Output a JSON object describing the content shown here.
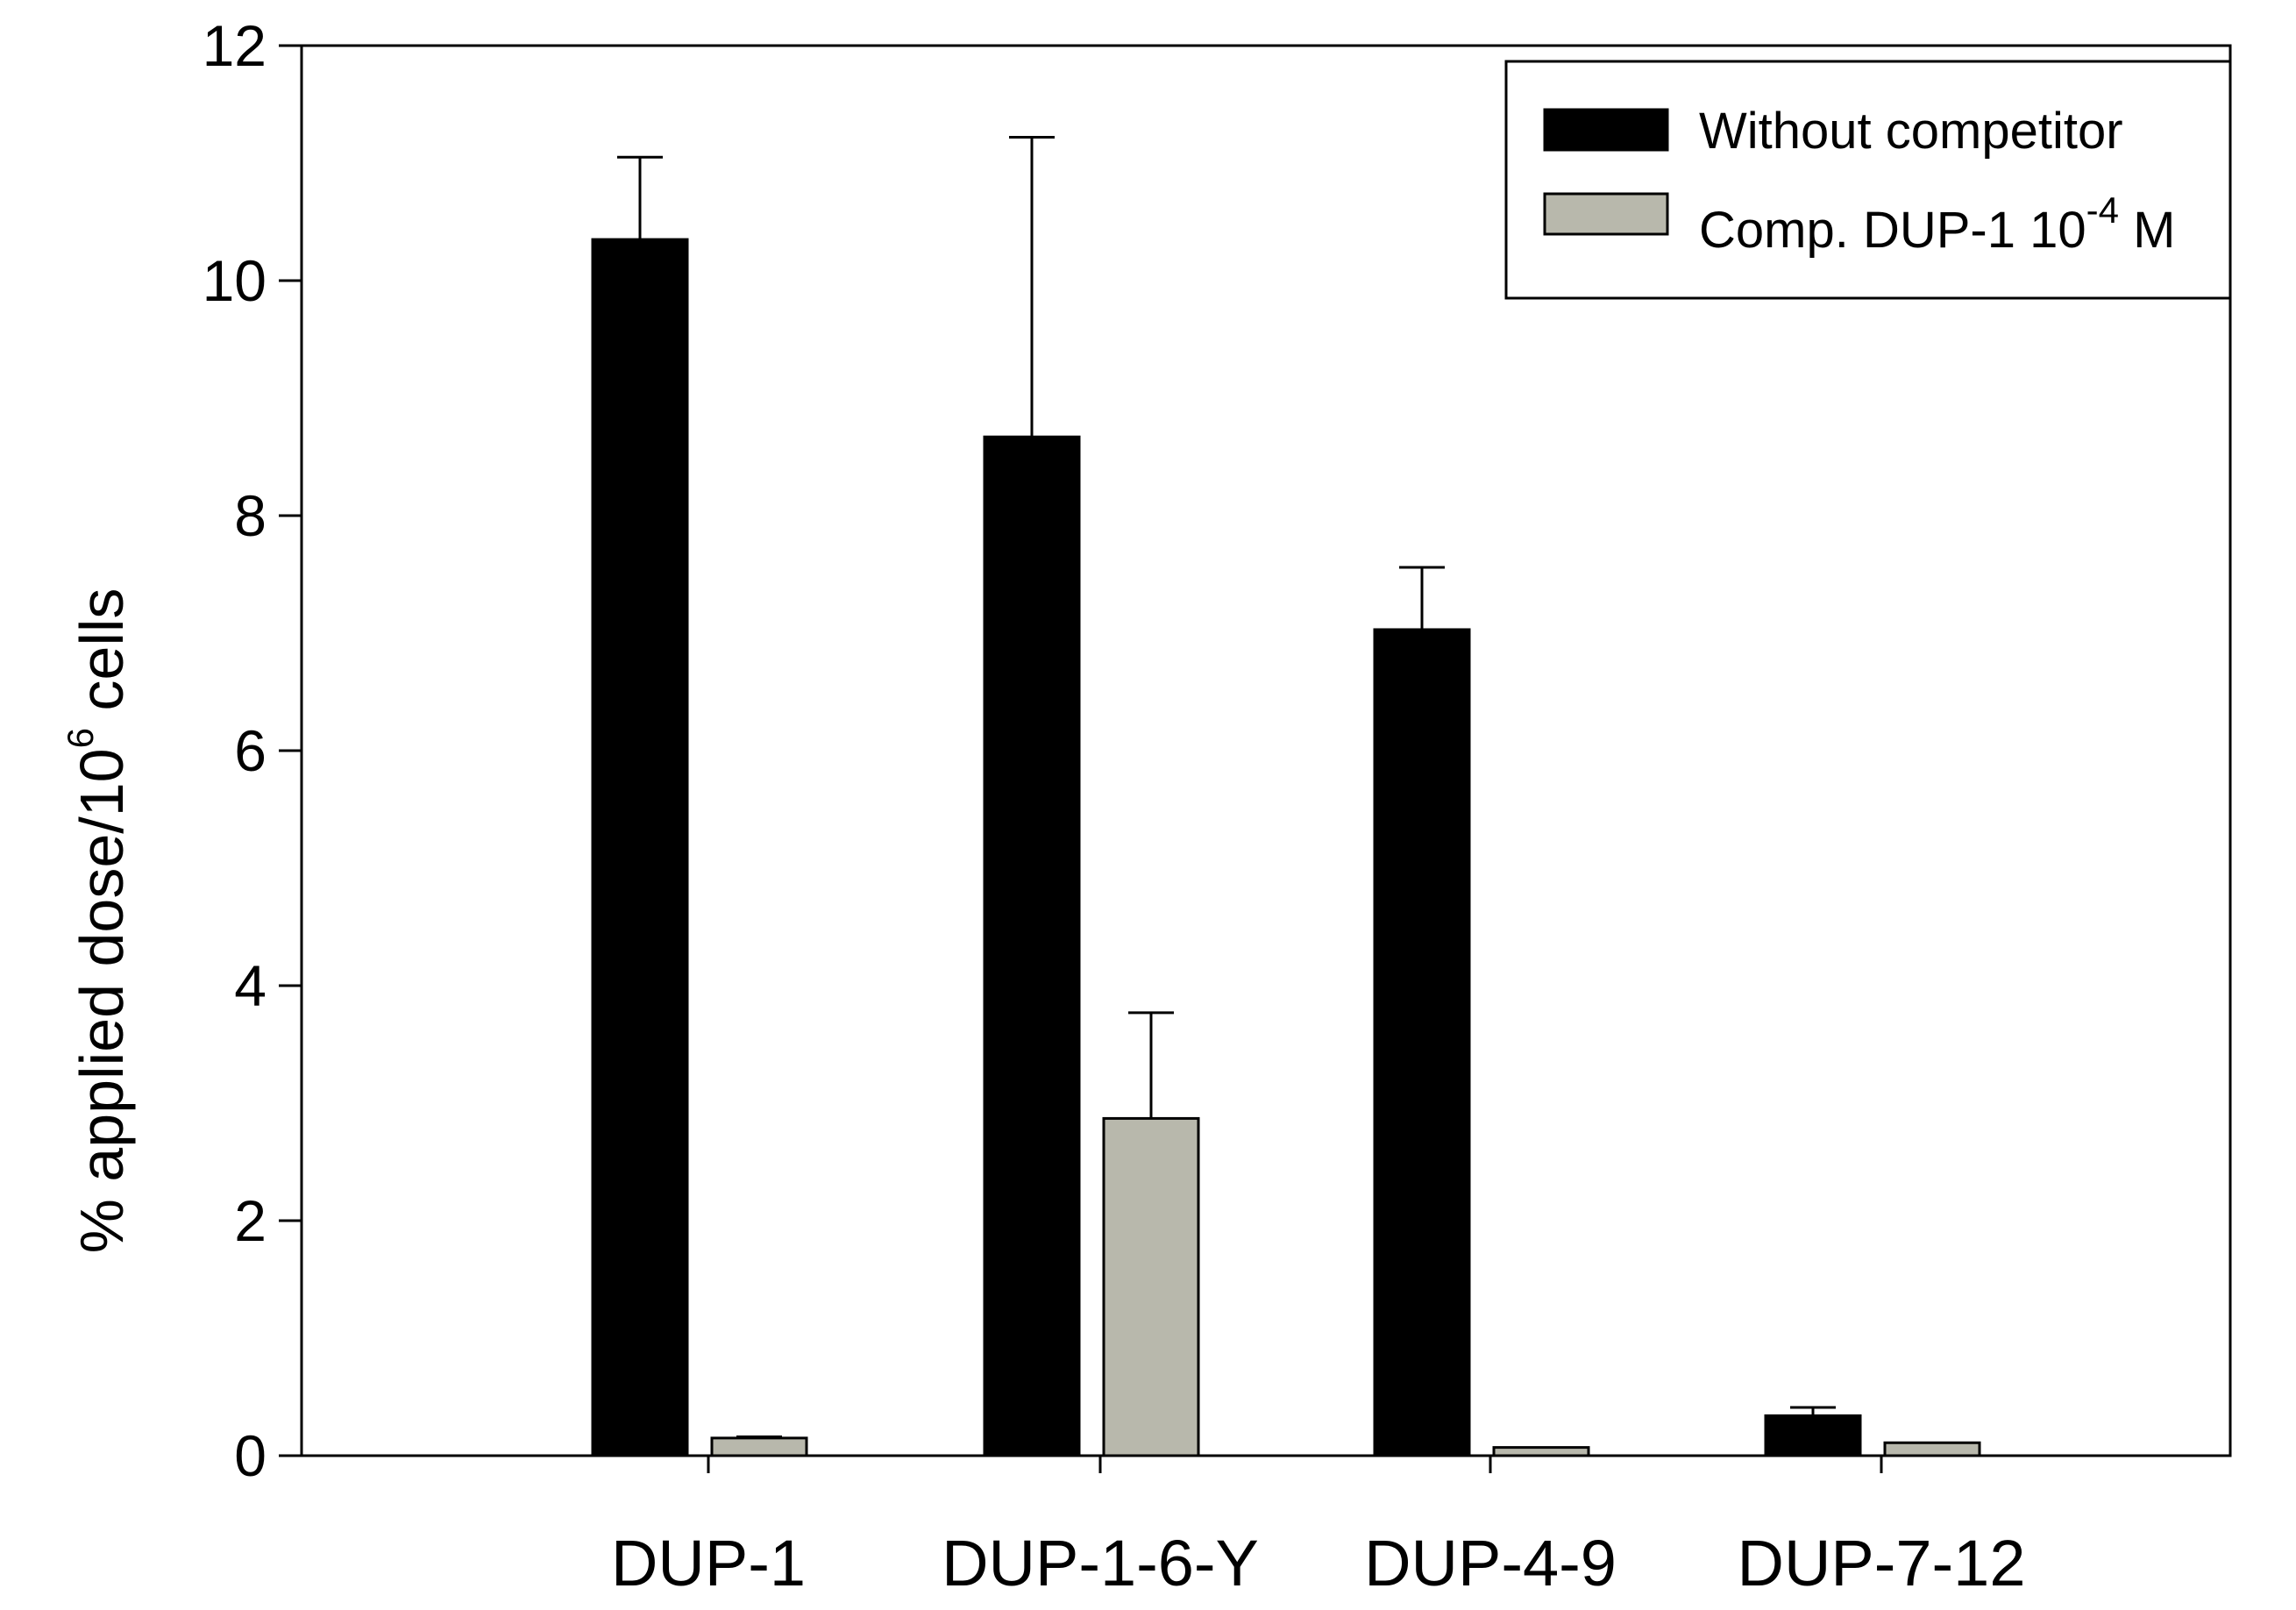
{
  "chart_data": {
    "type": "bar",
    "title": "",
    "xlabel": "",
    "ylabel": {
      "main": "% applied dose/10",
      "superscript": "6",
      "suffix": " cells"
    },
    "ylim": [
      0,
      12
    ],
    "yticks": [
      0,
      2,
      4,
      6,
      8,
      10,
      12
    ],
    "categories": [
      "DUP-1",
      "DUP-1-6-Y",
      "DUP-4-9",
      "DUP-7-12"
    ],
    "series": [
      {
        "name": "Without competitor",
        "color": "#000000",
        "values": [
          10.35,
          8.67,
          7.03,
          0.34
        ],
        "error": [
          0.7,
          2.55,
          0.53,
          0.07
        ]
      },
      {
        "name": "Comp. DUP-1 10-4 M",
        "label_main": "Comp. DUP-1 10",
        "label_superscript": "-4",
        "label_suffix": " M",
        "color": "#b8b8ac",
        "values": [
          0.15,
          2.87,
          0.07,
          0.11
        ],
        "error": [
          0.01,
          0.9,
          0.0,
          0.0
        ]
      }
    ],
    "legend_position": "top-right",
    "grid": false
  }
}
